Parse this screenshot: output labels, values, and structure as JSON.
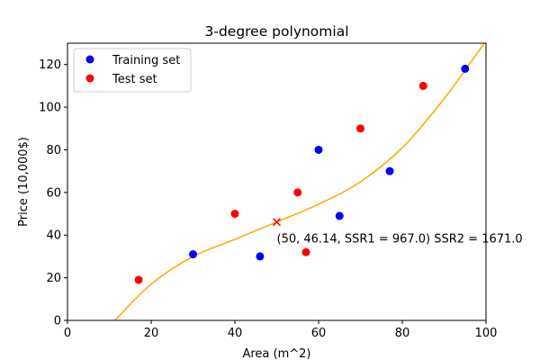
{
  "chart_data": {
    "type": "scatter",
    "title": "3-degree polynomial",
    "xlabel": "Area (m^2)",
    "ylabel": "Price (10,000$)",
    "xlim": [
      0,
      100
    ],
    "ylim": [
      0,
      130
    ],
    "x_ticks": [
      0,
      20,
      40,
      60,
      80,
      100
    ],
    "y_ticks": [
      0,
      20,
      40,
      60,
      80,
      100,
      120
    ],
    "grid": false,
    "legend_position": "upper-left",
    "series": [
      {
        "name": "Training set",
        "color": "#0000ff",
        "marker": "circle",
        "points": [
          [
            30,
            31
          ],
          [
            46,
            30
          ],
          [
            60,
            80
          ],
          [
            65,
            49
          ],
          [
            77,
            70
          ],
          [
            95,
            118
          ]
        ]
      },
      {
        "name": "Test set",
        "color": "#ff0000",
        "marker": "circle",
        "points": [
          [
            17,
            19
          ],
          [
            40,
            50
          ],
          [
            55,
            60
          ],
          [
            57,
            32
          ],
          [
            70,
            90
          ],
          [
            85,
            110
          ]
        ]
      }
    ],
    "fit_curve": {
      "color": "#ffa500",
      "degree": 3,
      "points": [
        [
          11.3,
          0
        ],
        [
          20,
          17
        ],
        [
          30,
          30
        ],
        [
          40,
          38
        ],
        [
          50,
          46.14
        ],
        [
          60,
          54.5
        ],
        [
          70,
          65
        ],
        [
          80,
          81
        ],
        [
          90,
          104
        ],
        [
          99.6,
          130
        ]
      ]
    },
    "highlight_point": {
      "x": 50,
      "y": 46.14,
      "marker": "x",
      "color": "#ff0000"
    },
    "annotation": {
      "text": "(50, 46.14, SSR1 = 967.0) SSR2 = 1671.0",
      "x": 50,
      "y": 36.5
    }
  }
}
